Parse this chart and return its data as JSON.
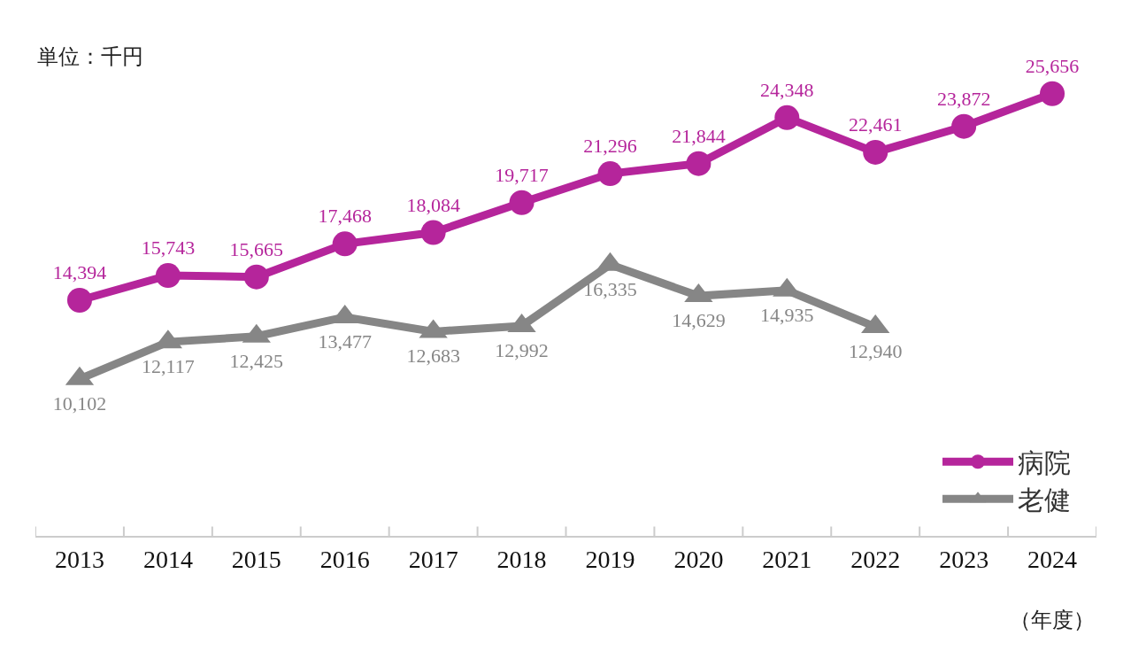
{
  "chart_data": {
    "type": "line",
    "annotations": [
      "単位：千円"
    ],
    "xlabel": "（年度）",
    "categories": [
      "2013",
      "2014",
      "2015",
      "2016",
      "2017",
      "2018",
      "2019",
      "2020",
      "2021",
      "2022",
      "2023",
      "2024"
    ],
    "series": [
      {
        "name": "病院",
        "color": "#b5259b",
        "marker": "circle",
        "values": [
          14394,
          15743,
          15665,
          17468,
          18084,
          19717,
          21296,
          21844,
          24348,
          22461,
          23872,
          25656
        ],
        "value_labels": [
          "14,394",
          "15,743",
          "15,665",
          "17,468",
          "18,084",
          "19,717",
          "21,296",
          "21,844",
          "24,348",
          "22,461",
          "23,872",
          "25,656"
        ]
      },
      {
        "name": "老健",
        "color": "#868686",
        "marker": "triangle",
        "values": [
          10102,
          12117,
          12425,
          13477,
          12683,
          12992,
          16335,
          14629,
          14935,
          12940,
          null,
          null
        ],
        "value_labels": [
          "10,102",
          "12,117",
          "12,425",
          "13,477",
          "12,683",
          "12,992",
          "16,335",
          "14,629",
          "14,935",
          "12,940",
          null,
          null
        ]
      }
    ],
    "legend": "bottom right",
    "tick_labels": "x"
  }
}
